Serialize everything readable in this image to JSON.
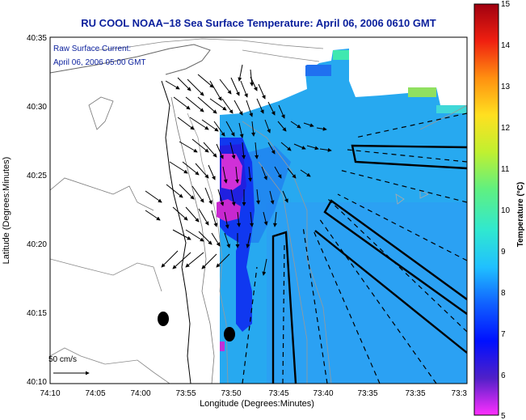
{
  "title": "RU COOL  NOAA−18  Sea Surface Temperature:  April 06, 2006 0610 GMT",
  "annotation": {
    "line1": "Raw Surface Current:",
    "line2": "April 06, 2006 05:00 GMT"
  },
  "axes": {
    "xlabel": "Longitude (Degrees:Minutes)",
    "ylabel": "Latitude (Degrees:Minutes)",
    "xticks": [
      "74:10",
      "74:05",
      "74:00",
      "73:55",
      "73:50",
      "73:45",
      "73:40",
      "73:35",
      "73:3"
    ],
    "yticks": [
      "40:35",
      "40:30",
      "40:25",
      "40:20",
      "40:15",
      "40:10"
    ]
  },
  "scale_label": "50 cm/s",
  "colorbar": {
    "label": "Temperature (°C)",
    "ticks": [
      "15",
      "14",
      "13",
      "12",
      "11",
      "10",
      "9",
      "8",
      "7",
      "6",
      "5"
    ],
    "min": 5,
    "max": 15,
    "colors": [
      "#ff2fff",
      "#5020c8",
      "#0010ff",
      "#1060ff",
      "#20c0ff",
      "#30e8d0",
      "#60f080",
      "#c0f030",
      "#ffe020",
      "#ff9010",
      "#f02010",
      "#a00010"
    ]
  }
}
